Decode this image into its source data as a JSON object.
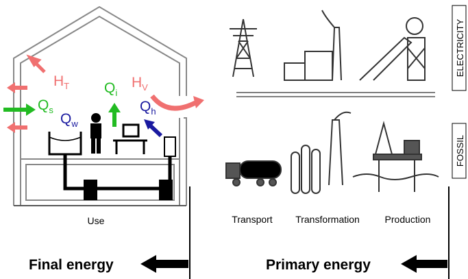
{
  "flows": [
    {
      "symbol": "H",
      "sub": "T"
    },
    {
      "symbol": "Q",
      "sub": "s"
    },
    {
      "symbol": "Q",
      "sub": "i"
    },
    {
      "symbol": "H",
      "sub": "V"
    },
    {
      "symbol": "Q",
      "sub": "w"
    },
    {
      "symbol": "Q",
      "sub": "h"
    }
  ],
  "use_label": "Use",
  "side_labels": {
    "electricity": "ELECTRICITY",
    "fossil": "FOSSIL"
  },
  "stages": [
    "Transport",
    "Transformation",
    "Production"
  ],
  "energy": {
    "final": "Final energy",
    "primary": "Primary energy"
  }
}
